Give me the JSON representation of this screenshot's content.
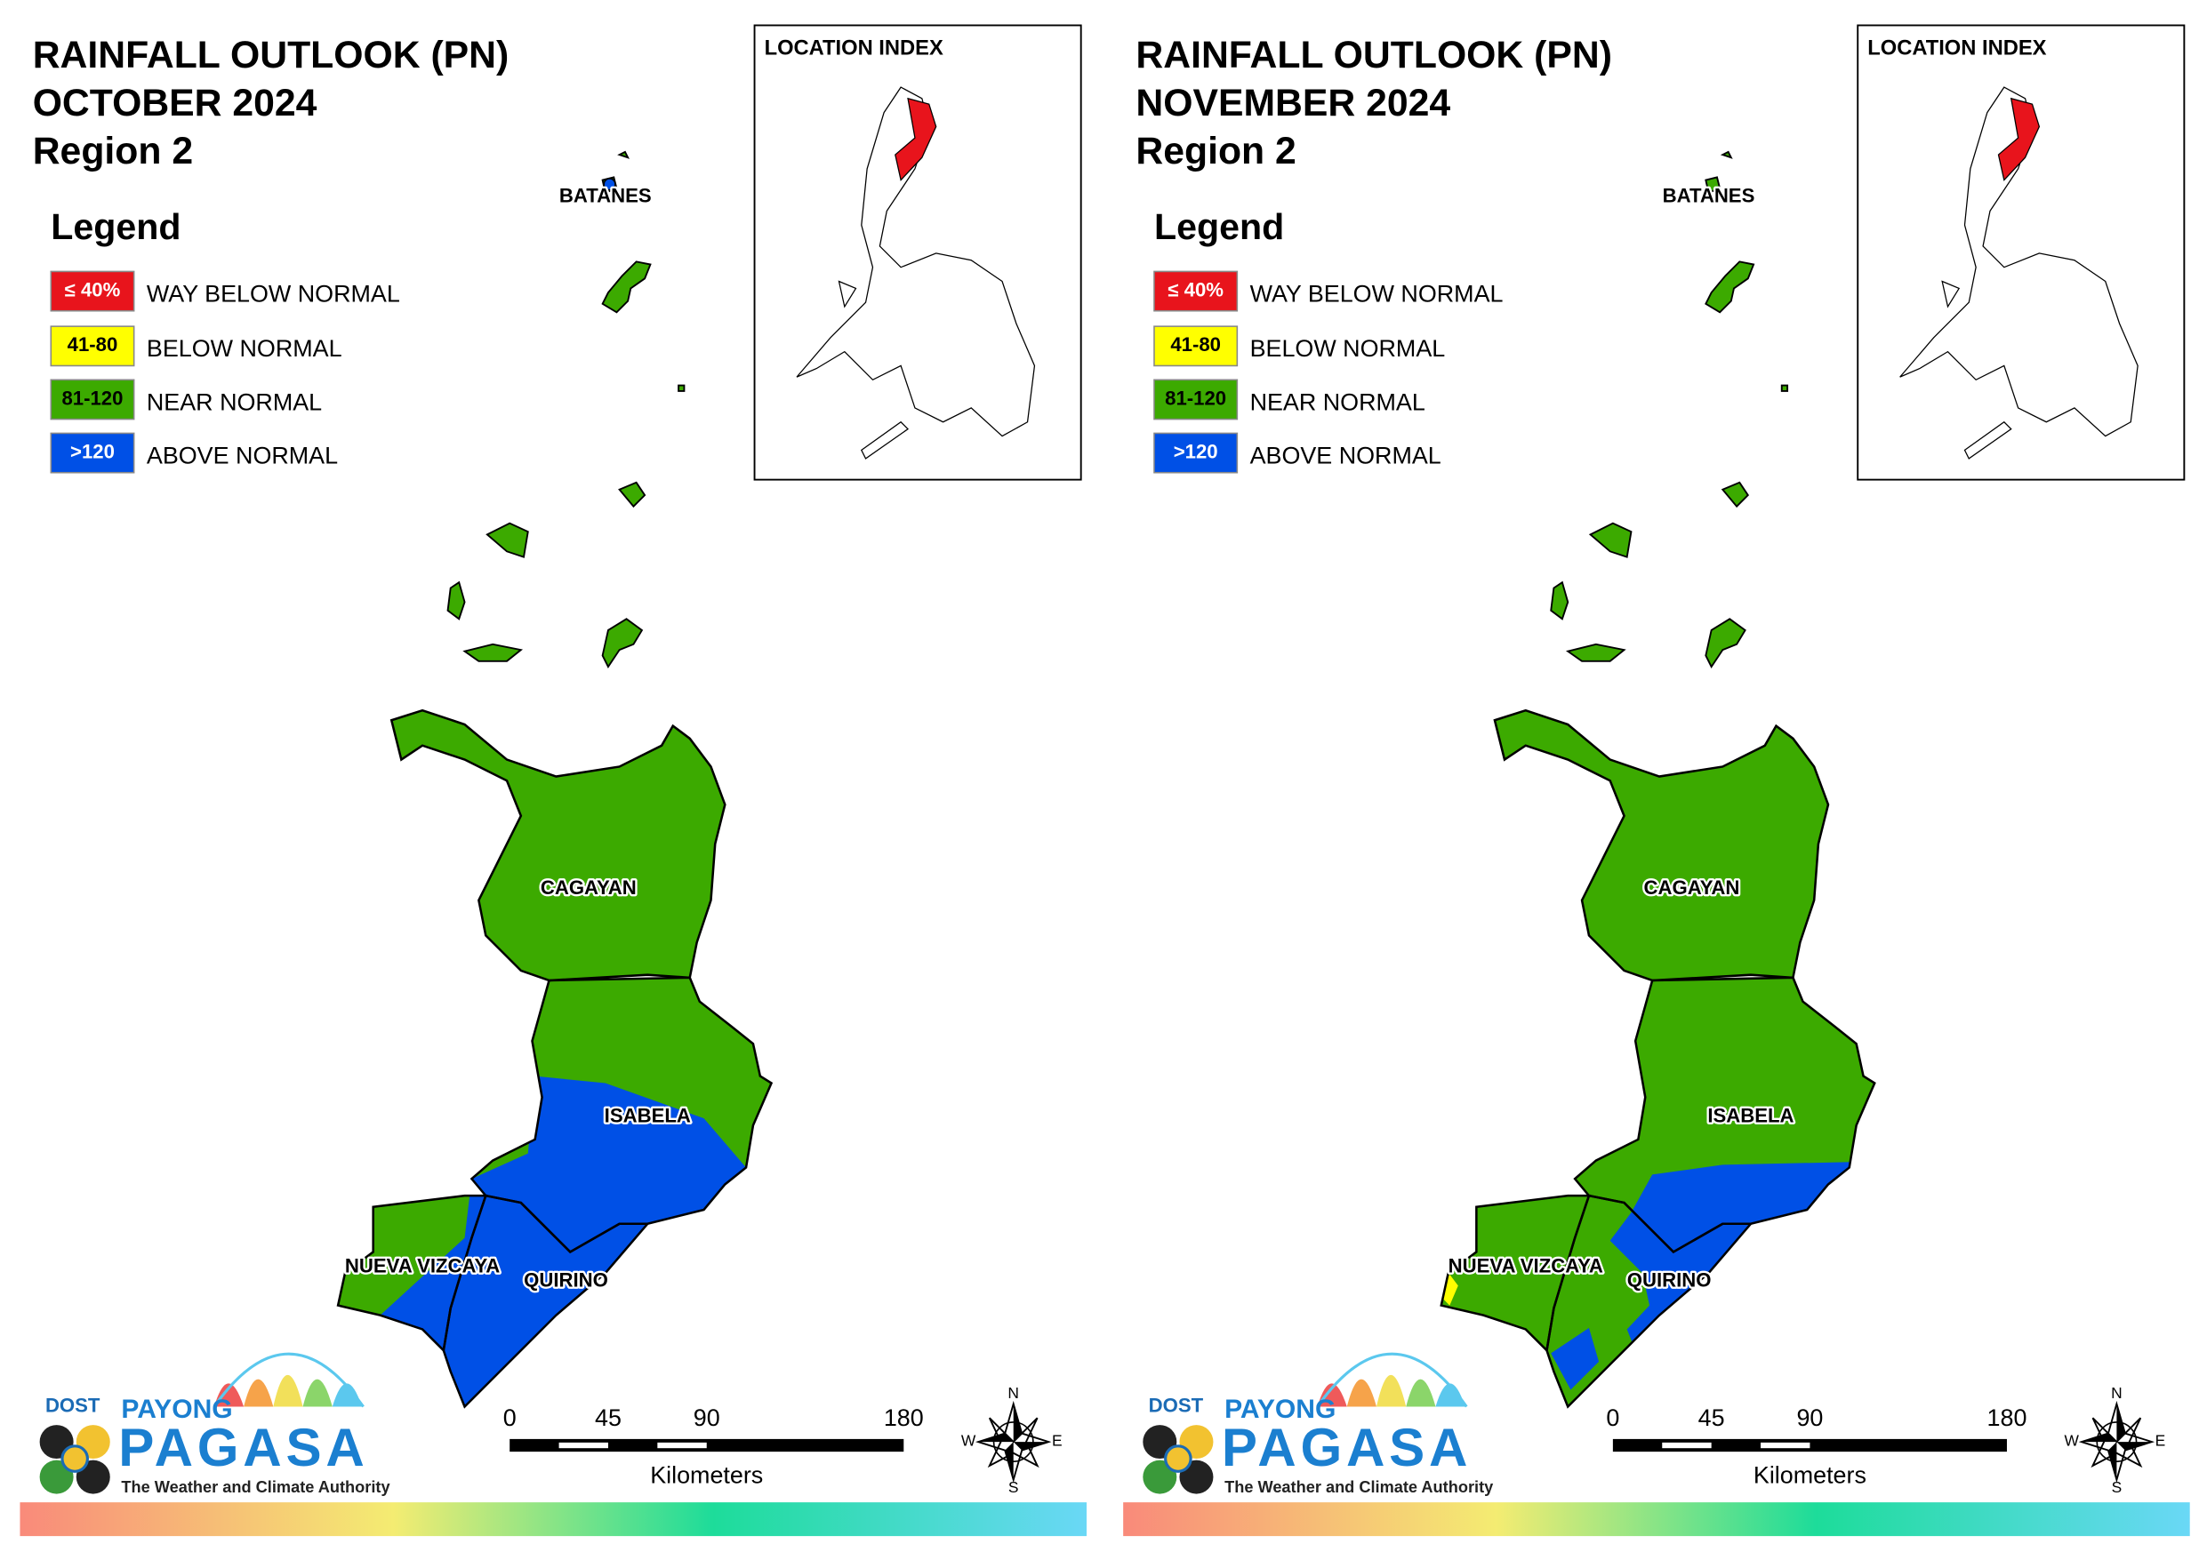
{
  "panels": [
    {
      "title": [
        "RAINFALL OUTLOOK (PN)",
        "OCTOBER 2024",
        "Region 2"
      ],
      "legend_title": "Legend",
      "legend": [
        {
          "range": "≤ 40%",
          "label": "WAY BELOW NORMAL",
          "color": "#e8141c"
        },
        {
          "range": "41-80",
          "label": "BELOW NORMAL",
          "color": "#ffff00"
        },
        {
          "range": "81-120",
          "label": "NEAR NORMAL",
          "color": "#3caa00"
        },
        {
          "range": ">120",
          "label": "ABOVE NORMAL",
          "color": "#0050e6"
        }
      ],
      "location_index": "LOCATION INDEX",
      "provinces": [
        "BATANES",
        "CAGAYAN",
        "ISABELA",
        "NUEVA VIZCAYA",
        "QUIRINO"
      ],
      "scale": {
        "ticks": [
          0,
          45,
          90,
          180
        ],
        "unit": "Kilometers"
      },
      "compass": {
        "n": "N",
        "e": "E",
        "s": "S",
        "w": "W"
      },
      "logo": {
        "agency": "DOST",
        "brand_top": "PAYONG",
        "brand": "PAGASA",
        "tagline": "The Weather and Climate Authority"
      }
    },
    {
      "title": [
        "RAINFALL OUTLOOK (PN)",
        "NOVEMBER 2024",
        "Region 2"
      ],
      "legend_title": "Legend",
      "legend": [
        {
          "range": "≤ 40%",
          "label": "WAY BELOW NORMAL",
          "color": "#e8141c"
        },
        {
          "range": "41-80",
          "label": "BELOW NORMAL",
          "color": "#ffff00"
        },
        {
          "range": "81-120",
          "label": "NEAR NORMAL",
          "color": "#3caa00"
        },
        {
          "range": ">120",
          "label": "ABOVE NORMAL",
          "color": "#0050e6"
        }
      ],
      "location_index": "LOCATION INDEX",
      "provinces": [
        "BATANES",
        "CAGAYAN",
        "ISABELA",
        "NUEVA VIZCAYA",
        "QUIRINO"
      ],
      "scale": {
        "ticks": [
          0,
          45,
          90,
          180
        ],
        "unit": "Kilometers"
      },
      "compass": {
        "n": "N",
        "e": "E",
        "s": "S",
        "w": "W"
      },
      "logo": {
        "agency": "DOST",
        "brand_top": "PAYONG",
        "brand": "PAGASA",
        "tagline": "The Weather and Climate Authority"
      }
    }
  ]
}
